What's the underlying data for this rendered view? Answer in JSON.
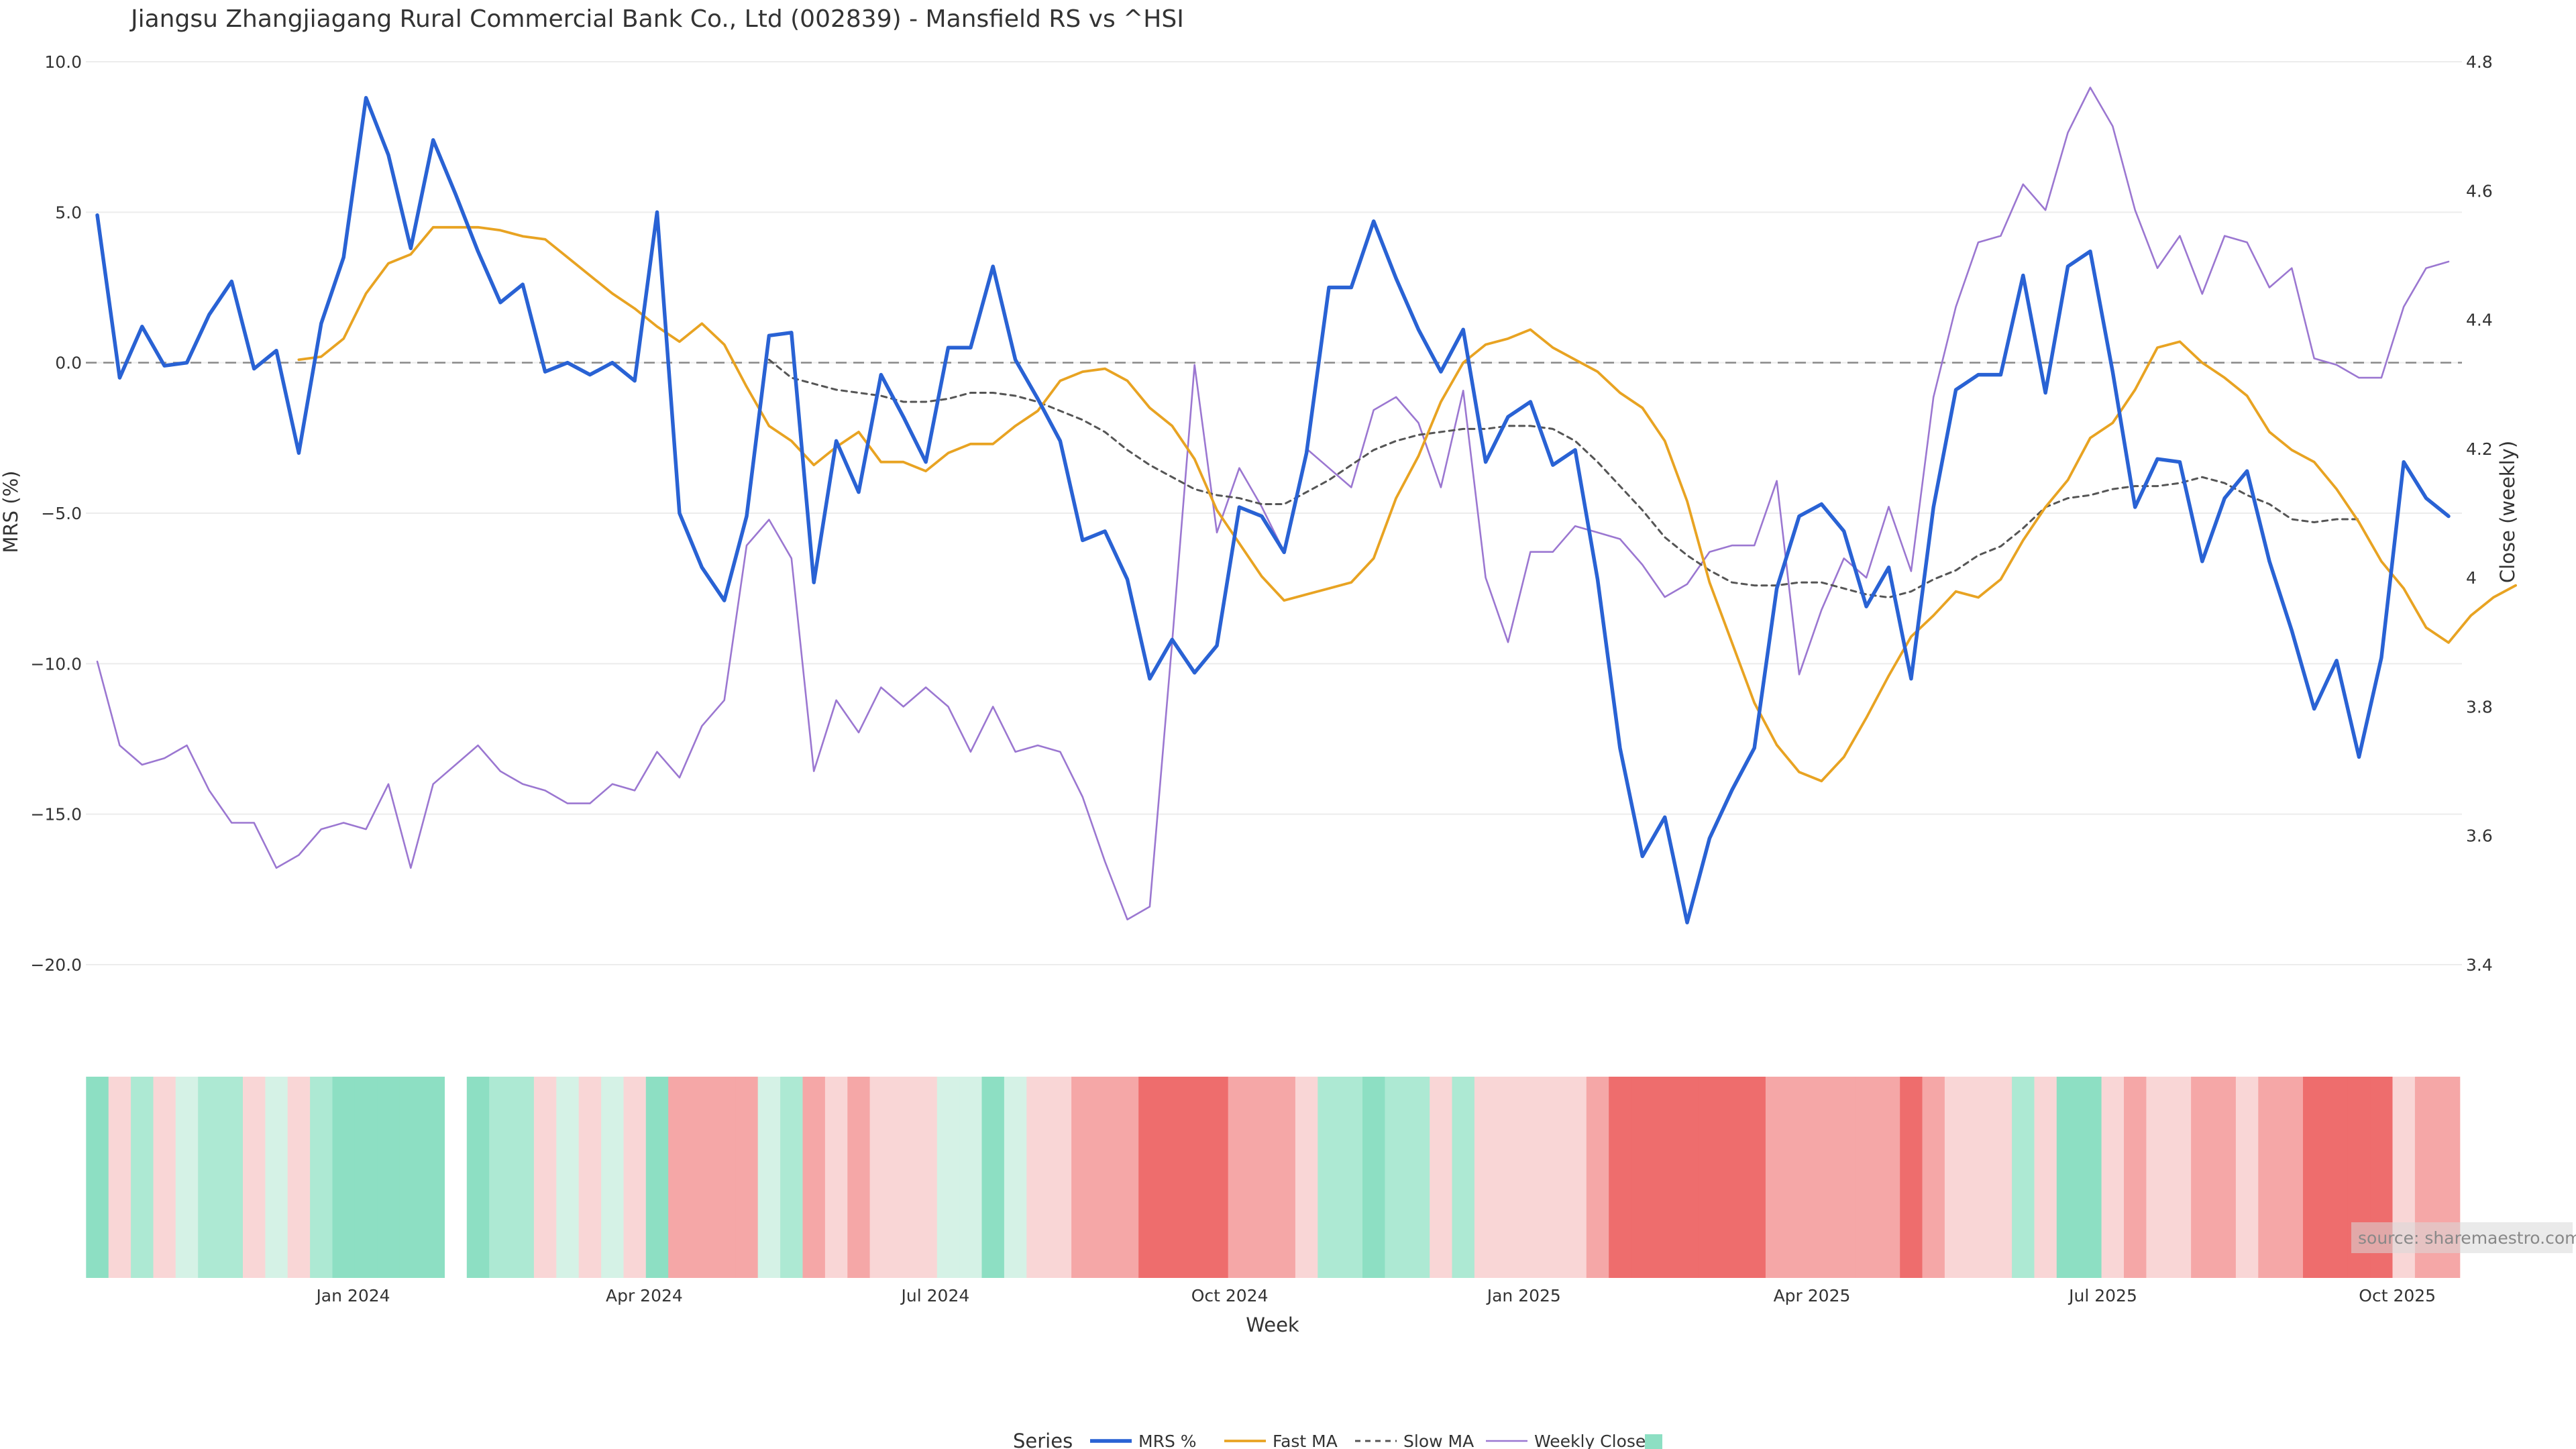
{
  "chart_data": {
    "type": "line",
    "title": "Jiangsu Zhangjiagang Rural Commercial Bank Co., Ltd (002839) - Mansfield RS vs ^HSI",
    "xlabel": "Week",
    "ylabel_left": "MRS (%)",
    "ylabel_right": "Close (weekly)",
    "ylim_left": [
      -20,
      10
    ],
    "ylim_right": [
      3.4,
      4.8
    ],
    "yticks_left": [
      "10.0",
      "5.0",
      "0.0",
      "−5.0",
      "−10.0",
      "−15.0",
      "−20.0"
    ],
    "yticks_left_values": [
      10,
      5,
      0,
      -5,
      -10,
      -15,
      -20
    ],
    "yticks_right": [
      "4.8",
      "4.6",
      "4.4",
      "4.2",
      "4",
      "3.8",
      "3.6",
      "3.4"
    ],
    "yticks_right_values": [
      4.8,
      4.6,
      4.4,
      4.2,
      4.0,
      3.8,
      3.6,
      3.4
    ],
    "x_start_date": "2023-10-13",
    "x_end_date": "2025-11-07",
    "x_ticks": [
      {
        "label": "Jan 2024",
        "date": "2024-01-01"
      },
      {
        "label": "Apr 2024",
        "date": "2024-04-01"
      },
      {
        "label": "Jul 2024",
        "date": "2024-07-01"
      },
      {
        "label": "Oct 2024",
        "date": "2024-10-01"
      },
      {
        "label": "Jan 2025",
        "date": "2025-01-01"
      },
      {
        "label": "Apr 2025",
        "date": "2025-04-01"
      },
      {
        "label": "Jul 2025",
        "date": "2025-07-01"
      },
      {
        "label": "Oct 2025",
        "date": "2025-10-01"
      }
    ],
    "grid": true,
    "zero_line": true,
    "series": [
      {
        "name": "MRS %",
        "color": "#2962d4",
        "axis": "left",
        "start_index": 0,
        "values": [
          4.9,
          -0.5,
          1.2,
          -0.1,
          0.0,
          1.6,
          2.7,
          -0.2,
          0.4,
          -3.0,
          1.3,
          3.5,
          8.8,
          6.9,
          3.8,
          7.4,
          5.6,
          3.7,
          2.0,
          2.6,
          -0.3,
          0.0,
          -0.4,
          0.0,
          -0.6,
          5.0,
          -5.0,
          -6.8,
          -7.9,
          -5.1,
          0.9,
          1.0,
          -7.3,
          -2.6,
          -4.3,
          -0.4,
          -1.8,
          -3.3,
          0.5,
          0.5,
          3.2,
          0.1,
          -1.2,
          -2.6,
          -5.9,
          -5.6,
          -7.2,
          -10.5,
          -9.2,
          -10.3,
          -9.4,
          -4.8,
          -5.1,
          -6.3,
          -3.0,
          2.5,
          2.5,
          4.7,
          2.8,
          1.1,
          -0.3,
          1.1,
          -3.3,
          -1.8,
          -1.3,
          -3.4,
          -2.9,
          -7.2,
          -12.8,
          -16.4,
          -15.1,
          -18.6,
          -15.8,
          -14.2,
          -12.8,
          -7.5,
          -5.1,
          -4.7,
          -5.6,
          -8.1,
          -6.8,
          -10.5,
          -4.8,
          -0.9,
          -0.4,
          -0.4,
          2.9,
          -1.0,
          3.2,
          3.7,
          -0.3,
          -4.8,
          -3.2,
          -3.3,
          -6.6,
          -4.5,
          -3.6,
          -6.6,
          -8.9,
          -11.5,
          -9.9,
          -13.1,
          -9.8,
          -3.3,
          -4.5,
          -5.1
        ]
      },
      {
        "name": "Fast MA",
        "color": "#e8a322",
        "axis": "left",
        "start_index": 9,
        "values": [
          0.1,
          0.2,
          0.8,
          2.3,
          3.3,
          3.6,
          4.5,
          4.5,
          4.5,
          4.4,
          4.2,
          4.1,
          3.5,
          2.9,
          2.3,
          1.8,
          1.2,
          0.7,
          1.3,
          0.6,
          -0.8,
          -2.1,
          -2.6,
          -3.4,
          -2.8,
          -2.3,
          -3.3,
          -3.3,
          -3.6,
          -3.0,
          -2.7,
          -2.7,
          -2.1,
          -1.6,
          -0.6,
          -0.3,
          -0.2,
          -0.6,
          -1.5,
          -2.1,
          -3.2,
          -4.9,
          -6.0,
          -7.1,
          -7.9,
          -7.7,
          -7.5,
          -7.3,
          -6.5,
          -4.5,
          -3.1,
          -1.3,
          0.0,
          0.6,
          0.8,
          1.1,
          0.5,
          0.1,
          -0.3,
          -1.0,
          -1.5,
          -2.6,
          -4.6,
          -7.3,
          -9.3,
          -11.3,
          -12.7,
          -13.6,
          -13.9,
          -13.1,
          -11.8,
          -10.4,
          -9.1,
          -8.4,
          -7.6,
          -7.8,
          -7.2,
          -5.9,
          -4.8,
          -3.9,
          -2.5,
          -2.0,
          -0.9,
          0.5,
          0.7,
          0.0,
          -0.5,
          -1.1,
          -2.3,
          -2.9,
          -3.3,
          -4.2,
          -5.3,
          -6.6,
          -7.5,
          -8.8,
          -9.3,
          -8.4,
          -7.8,
          -7.4
        ]
      },
      {
        "name": "Slow MA",
        "color": "#555555",
        "axis": "left",
        "start_index": 30,
        "values": [
          0.1,
          -0.5,
          -0.7,
          -0.9,
          -1.0,
          -1.1,
          -1.3,
          -1.3,
          -1.2,
          -1.0,
          -1.0,
          -1.1,
          -1.3,
          -1.6,
          -1.9,
          -2.3,
          -2.9,
          -3.4,
          -3.8,
          -4.2,
          -4.4,
          -4.5,
          -4.7,
          -4.7,
          -4.3,
          -3.9,
          -3.4,
          -2.9,
          -2.6,
          -2.4,
          -2.3,
          -2.2,
          -2.2,
          -2.1,
          -2.1,
          -2.2,
          -2.6,
          -3.3,
          -4.1,
          -4.9,
          -5.8,
          -6.4,
          -6.9,
          -7.3,
          -7.4,
          -7.4,
          -7.3,
          -7.3,
          -7.5,
          -7.7,
          -7.8,
          -7.6,
          -7.2,
          -6.9,
          -6.4,
          -6.1,
          -5.5,
          -4.8,
          -4.5,
          -4.4,
          -4.2,
          -4.1,
          -4.1,
          -4.0,
          -3.8,
          -4.0,
          -4.4,
          -4.7,
          -5.2,
          -5.3,
          -5.2,
          -5.2
        ]
      },
      {
        "name": "Weekly Close",
        "color": "#9b77d1",
        "axis": "right",
        "start_index": 0,
        "values": [
          3.87,
          3.74,
          3.71,
          3.72,
          3.74,
          3.67,
          3.62,
          3.62,
          3.55,
          3.57,
          3.61,
          3.62,
          3.61,
          3.68,
          3.55,
          3.68,
          3.71,
          3.74,
          3.7,
          3.68,
          3.67,
          3.65,
          3.65,
          3.68,
          3.67,
          3.73,
          3.69,
          3.77,
          3.81,
          4.05,
          4.09,
          4.03,
          3.7,
          3.81,
          3.76,
          3.83,
          3.8,
          3.83,
          3.8,
          3.73,
          3.8,
          3.73,
          3.74,
          3.73,
          3.66,
          3.56,
          3.47,
          3.49,
          3.9,
          4.33,
          4.07,
          4.17,
          4.11,
          4.04,
          4.2,
          4.17,
          4.14,
          4.26,
          4.28,
          4.24,
          4.14,
          4.29,
          4.0,
          3.9,
          4.04,
          4.04,
          4.08,
          4.07,
          4.06,
          4.02,
          3.97,
          3.99,
          4.04,
          4.05,
          4.05,
          4.15,
          3.85,
          3.95,
          4.03,
          4.0,
          4.11,
          4.01,
          4.28,
          4.42,
          4.52,
          4.53,
          4.61,
          4.57,
          4.69,
          4.76,
          4.7,
          4.57,
          4.48,
          4.53,
          4.44,
          4.53,
          4.52,
          4.45,
          4.48,
          4.34,
          4.33,
          4.31,
          4.31,
          4.42,
          4.48,
          4.49
        ]
      }
    ],
    "heatmap_strip": {
      "description_values": "MRS bins shown as coloured columns (teal = positive, red = negative)",
      "colors": [
        "#8ddfc3",
        "#ade9d3",
        "#d5f2e6",
        "#f9d6d6",
        "#f5a7a7",
        "#ee6d6d"
      ]
    },
    "legend": {
      "title": "Series",
      "placement": "bottom-center",
      "items": [
        "MRS %",
        "Fast MA",
        "Slow MA",
        "Weekly Close",
        ""
      ]
    },
    "source": "source: sharemaestro.com"
  }
}
